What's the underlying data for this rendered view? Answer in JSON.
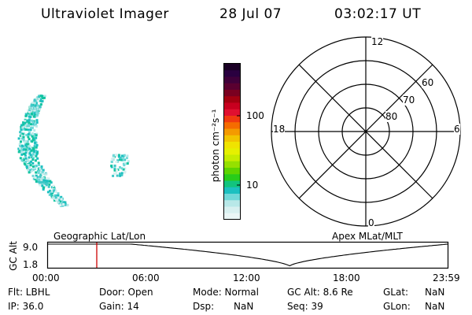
{
  "header": {
    "instrument": "Ultraviolet Imager",
    "date": "28 Jul 07",
    "time": "03:02:17 UT"
  },
  "colorbar": {
    "label": "photon cm⁻²s⁻¹",
    "ticks": [
      "100",
      "10"
    ],
    "colors": [
      "#1a0025",
      "#2a0040",
      "#3f003a",
      "#5a0030",
      "#7a0020",
      "#a30010",
      "#c8001f",
      "#e01030",
      "#f03a10",
      "#f56c00",
      "#f49a00",
      "#f2c400",
      "#f0e300",
      "#e6f000",
      "#c6ec00",
      "#96e000",
      "#5ed400",
      "#28cc1a",
      "#12c47e",
      "#1cc0c0",
      "#70d8d8",
      "#b8e8e8",
      "#d8f0f0",
      "#eaf6f6"
    ]
  },
  "polar": {
    "mlt_labels": [
      "12",
      "18",
      "6",
      "0"
    ],
    "lat_labels": [
      "60",
      "70",
      "80"
    ]
  },
  "timeline": {
    "ylabel": "GC Alt",
    "y_ticks": [
      "9.0",
      "1.8"
    ],
    "left_label": "Geographic Lat/Lon",
    "right_label": "Apex MLat/MLT",
    "x_ticks": [
      "00:00",
      "06:00",
      "12:00",
      "18:00",
      "23:59"
    ],
    "cursor_color": "#cc0000"
  },
  "info": {
    "flt": "Flt: LBHL",
    "door": "Door: Open",
    "mode": "Mode: Normal",
    "gc_alt": "GC Alt: 8.6 Re",
    "glat_label": "GLat:",
    "glat_value": "NaN",
    "ip": "IP: 36.0",
    "gain": "Gain: 14",
    "dsp_label": "Dsp:",
    "dsp_value": "NaN",
    "seq": "Seq: 39",
    "glon_label": "GLon:",
    "glon_value": "NaN"
  }
}
